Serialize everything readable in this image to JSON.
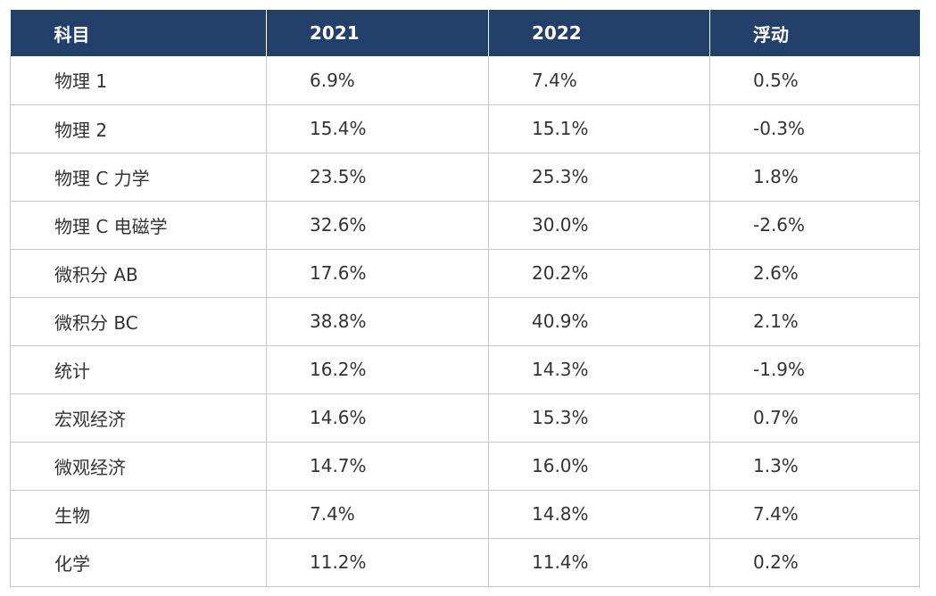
{
  "table": {
    "headers": [
      "科目",
      "2021",
      "2022",
      "浮动"
    ],
    "rows": [
      [
        "物理 1",
        "6.9%",
        "7.4%",
        "0.5%"
      ],
      [
        "物理 2",
        "15.4%",
        "15.1%",
        "-0.3%"
      ],
      [
        "物理 C 力学",
        "23.5%",
        "25.3%",
        "1.8%"
      ],
      [
        "物理 C 电磁学",
        "32.6%",
        "30.0%",
        "-2.6%"
      ],
      [
        "微积分 AB",
        "17.6%",
        "20.2%",
        "2.6%"
      ],
      [
        "微积分 BC",
        "38.8%",
        "40.9%",
        "2.1%"
      ],
      [
        "统计",
        "16.2%",
        "14.3%",
        "-1.9%"
      ],
      [
        "宏观经济",
        "14.6%",
        "15.3%",
        "0.7%"
      ],
      [
        "微观经济",
        "14.7%",
        "16.0%",
        "1.3%"
      ],
      [
        "生物",
        "7.4%",
        "14.8%",
        "7.4%"
      ],
      [
        "化学",
        "11.2%",
        "11.4%",
        "0.2%"
      ]
    ]
  },
  "colors": {
    "header_bg": "#22406a",
    "header_text": "#ffffff",
    "cell_text": "#333333",
    "grid": "#c8c8c8"
  }
}
